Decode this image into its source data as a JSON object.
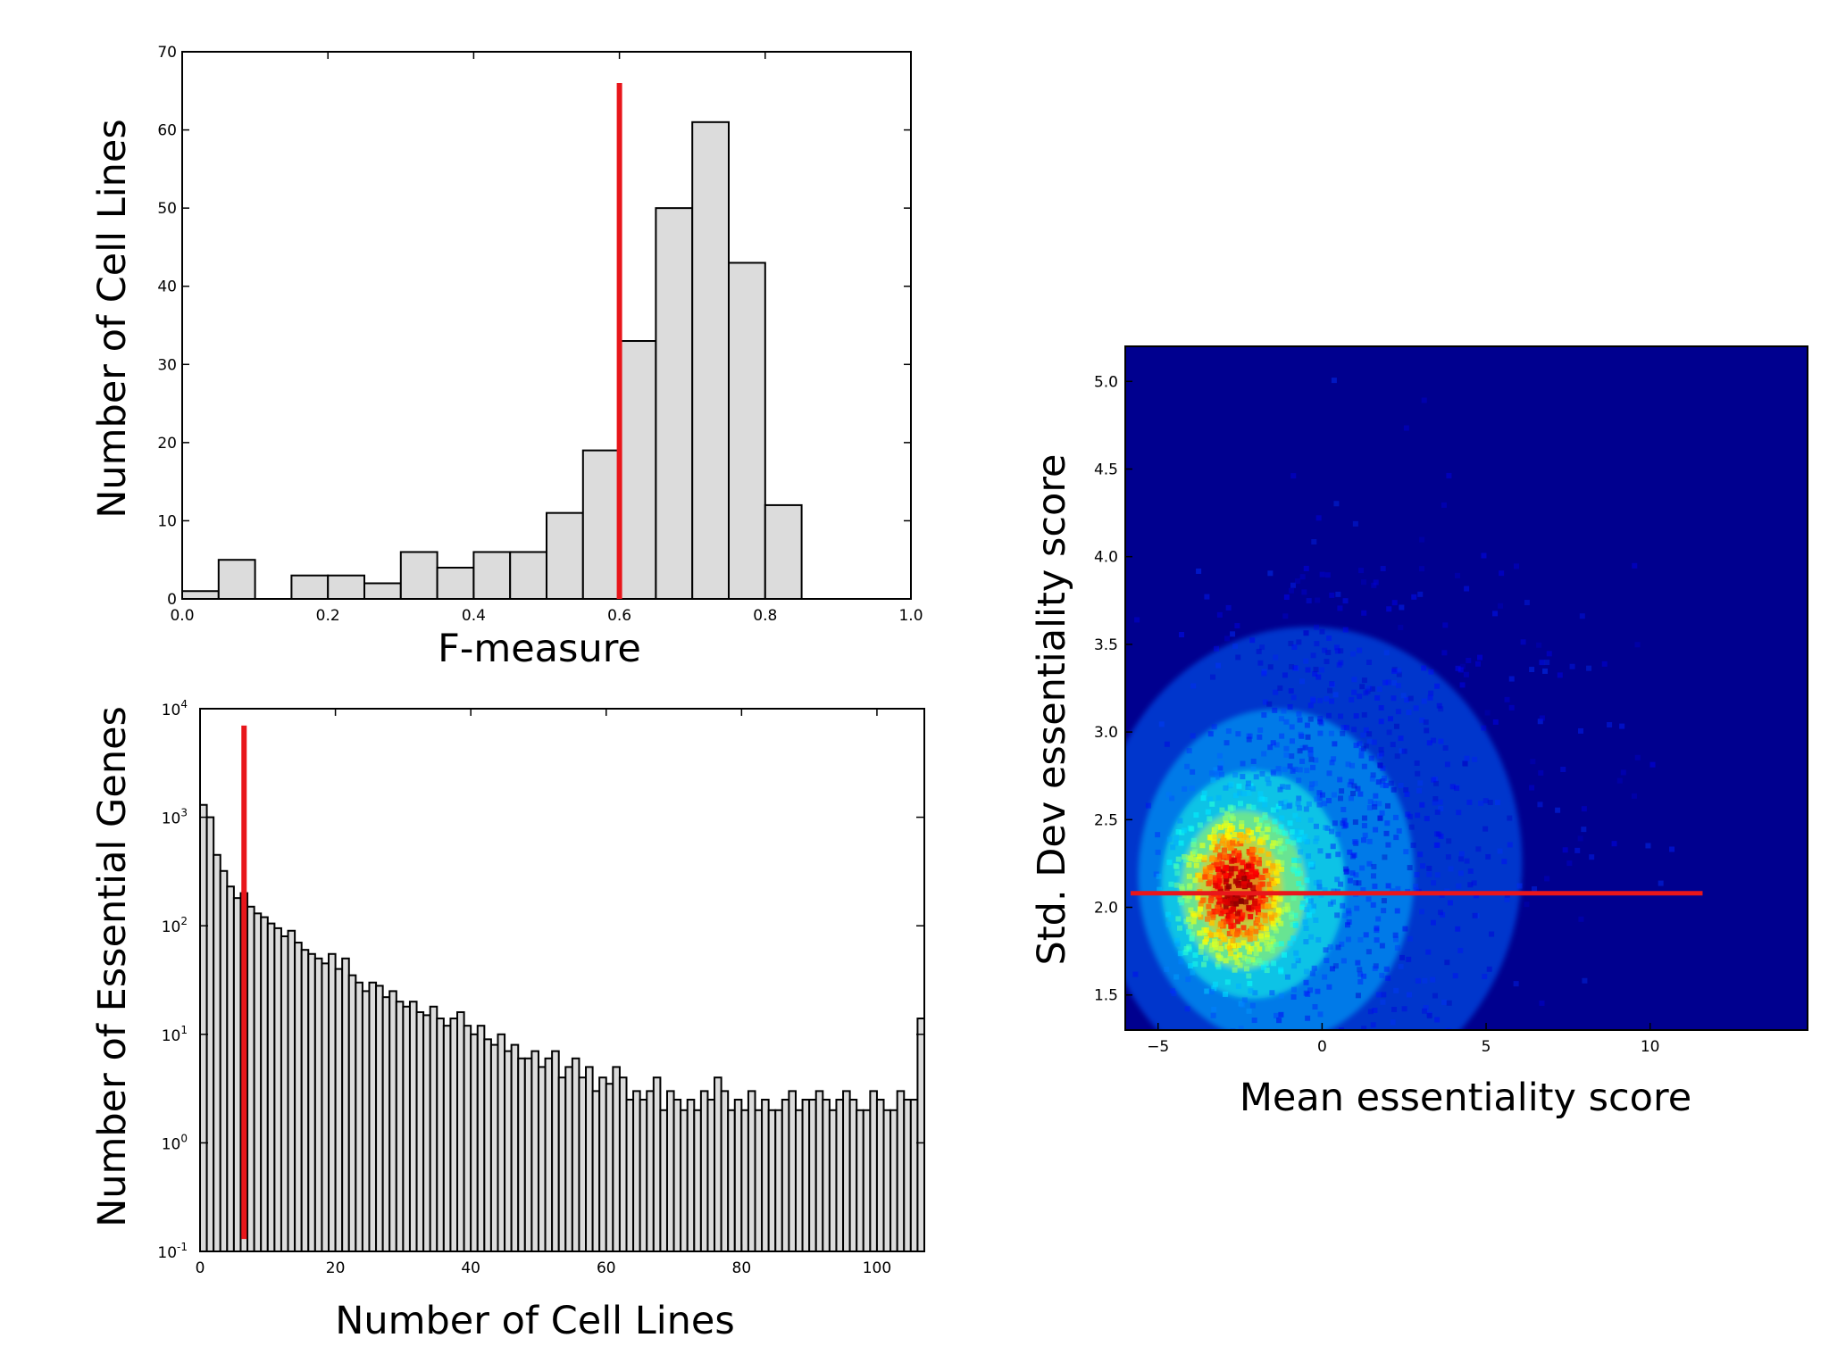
{
  "chart_data": [
    {
      "type": "bar",
      "xlabel": "F-measure",
      "ylabel": "Number of Cell Lines",
      "xlim": [
        0.0,
        1.0
      ],
      "ylim": [
        0,
        70
      ],
      "xticks": [
        "0.0",
        "0.2",
        "0.4",
        "0.6",
        "0.8",
        "1.0"
      ],
      "yticks": [
        "0",
        "10",
        "20",
        "30",
        "40",
        "50",
        "60",
        "70"
      ],
      "bin_width": 0.05,
      "bin_starts": [
        0.0,
        0.05,
        0.1,
        0.15,
        0.2,
        0.25,
        0.3,
        0.35,
        0.4,
        0.45,
        0.5,
        0.55,
        0.6,
        0.65,
        0.7,
        0.75,
        0.8
      ],
      "values": [
        1,
        5,
        0,
        3,
        3,
        2,
        6,
        4,
        6,
        6,
        11,
        19,
        33,
        50,
        61,
        43,
        12
      ],
      "threshold_line": {
        "orientation": "vertical",
        "x": 0.6,
        "y_range": [
          0,
          66
        ],
        "color": "#e8161b"
      }
    },
    {
      "type": "bar",
      "xlabel": "Number of Cell Lines",
      "ylabel": "Number of Essential Genes",
      "yscale": "log",
      "xlim": [
        0,
        107
      ],
      "ylim": [
        0.1,
        10000
      ],
      "xticks": [
        "0",
        "20",
        "40",
        "60",
        "80",
        "100"
      ],
      "yticks": [
        {
          "base": "10",
          "exp": "-1"
        },
        {
          "base": "10",
          "exp": "0"
        },
        {
          "base": "10",
          "exp": "1"
        },
        {
          "base": "10",
          "exp": "2"
        },
        {
          "base": "10",
          "exp": "3"
        },
        {
          "base": "10",
          "exp": "4"
        }
      ],
      "bin_width": 1,
      "x_start": 0,
      "values": [
        1300,
        1000,
        450,
        320,
        230,
        180,
        200,
        150,
        130,
        120,
        105,
        95,
        80,
        90,
        70,
        60,
        55,
        50,
        45,
        55,
        40,
        50,
        35,
        30,
        25,
        30,
        28,
        22,
        25,
        20,
        18,
        20,
        16,
        15,
        18,
        14,
        12,
        14,
        16,
        12,
        10,
        12,
        9,
        8,
        10,
        7,
        8,
        6,
        6,
        7,
        5,
        6,
        7,
        4,
        5,
        6,
        4,
        5,
        3,
        4,
        3.5,
        5,
        4,
        2.5,
        3,
        2.5,
        3,
        4,
        2,
        3,
        2.5,
        2,
        2.5,
        2,
        3,
        2.5,
        4,
        3,
        2,
        2.5,
        2,
        3,
        2,
        2.5,
        2,
        2,
        2.5,
        3,
        2,
        2.5,
        2.5,
        3,
        2.5,
        2,
        2.5,
        3,
        2.5,
        2,
        2,
        3,
        2.5,
        2,
        2,
        3,
        2.5,
        2.5,
        14
      ],
      "threshold_line": {
        "orientation": "vertical",
        "x": 6.5,
        "y_range": [
          0.13,
          7000
        ],
        "color": "#e8161b"
      }
    },
    {
      "type": "heatmap",
      "xlabel": "Mean essentiality score",
      "ylabel": "Std. Dev essentiality score",
      "xlim": [
        -6,
        14.8
      ],
      "ylim": [
        1.3,
        5.2
      ],
      "xticks": [
        "−5",
        "0",
        "5",
        "10"
      ],
      "yticks": [
        "1.5",
        "2.0",
        "2.5",
        "3.0",
        "3.5",
        "4.0",
        "4.5",
        "5.0"
      ],
      "background_color": "#00008f",
      "density_peak": {
        "x": -2.6,
        "y": 2.1
      },
      "colormap": "jet",
      "threshold_line": {
        "orientation": "horizontal",
        "y": 2.08,
        "x_range": [
          -6,
          11.6
        ],
        "color": "#e8161b"
      }
    }
  ]
}
